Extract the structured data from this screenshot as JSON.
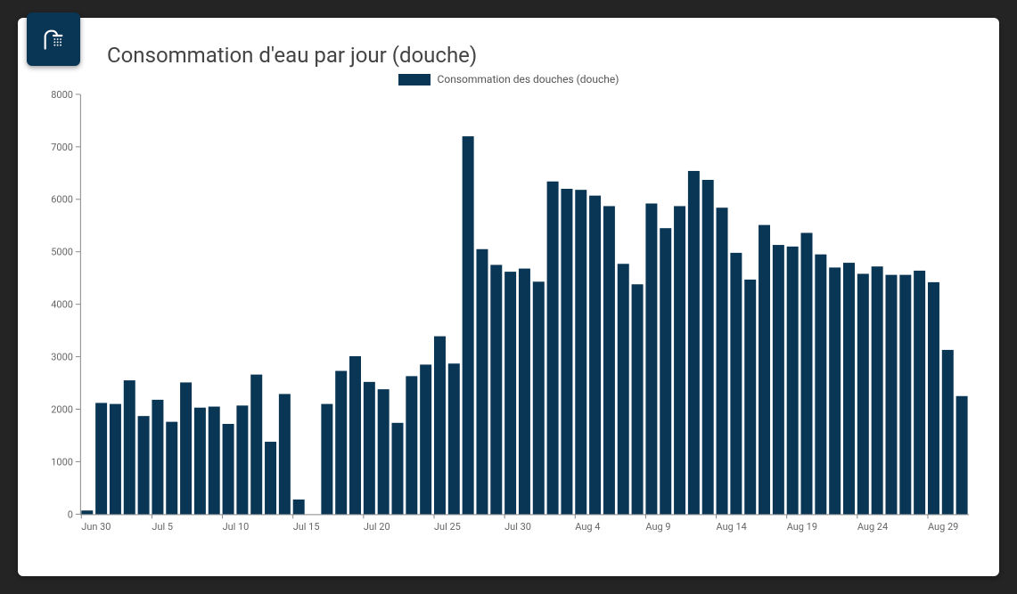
{
  "card": {
    "title": "Consommation d'eau par jour (douche)",
    "icon_name": "shower-icon",
    "icon_bg": "#0a3655",
    "icon_fg": "#ffffff"
  },
  "chart": {
    "type": "bar",
    "legend_label": "Consommation des douches (douche)",
    "bar_color": "#0a3655",
    "background_color": "#ffffff",
    "axis_color": "#888888",
    "text_color": "#666666",
    "ylim": [
      0,
      8000
    ],
    "ytick_step": 1000,
    "x_tick_every": 5,
    "x_labels": [
      "Jun 30",
      "Jul 5",
      "Jul 10",
      "Jul 15",
      "Jul 20",
      "Jul 25",
      "Jul 30",
      "Aug 4",
      "Aug 9",
      "Aug 14",
      "Aug 19",
      "Aug 24",
      "Aug 29"
    ],
    "values": [
      70,
      2120,
      2100,
      2550,
      1870,
      2180,
      1760,
      2510,
      2030,
      2050,
      1720,
      2070,
      2660,
      1380,
      2290,
      280,
      0,
      2100,
      2730,
      3010,
      2520,
      2380,
      1740,
      2630,
      2850,
      3390,
      2870,
      7200,
      5050,
      4750,
      4620,
      4680,
      4430,
      6340,
      6200,
      6180,
      6070,
      5870,
      4770,
      4380,
      5920,
      5450,
      5870,
      6540,
      6370,
      5840,
      4980,
      4470,
      5510,
      5130,
      5100,
      5360,
      4950,
      4700,
      4790,
      4580,
      4720,
      4560,
      4560,
      4640,
      4420,
      3130,
      2250
    ],
    "bar_gap_ratio": 0.18,
    "label_fontsize": 11,
    "title_fontsize": 24
  }
}
